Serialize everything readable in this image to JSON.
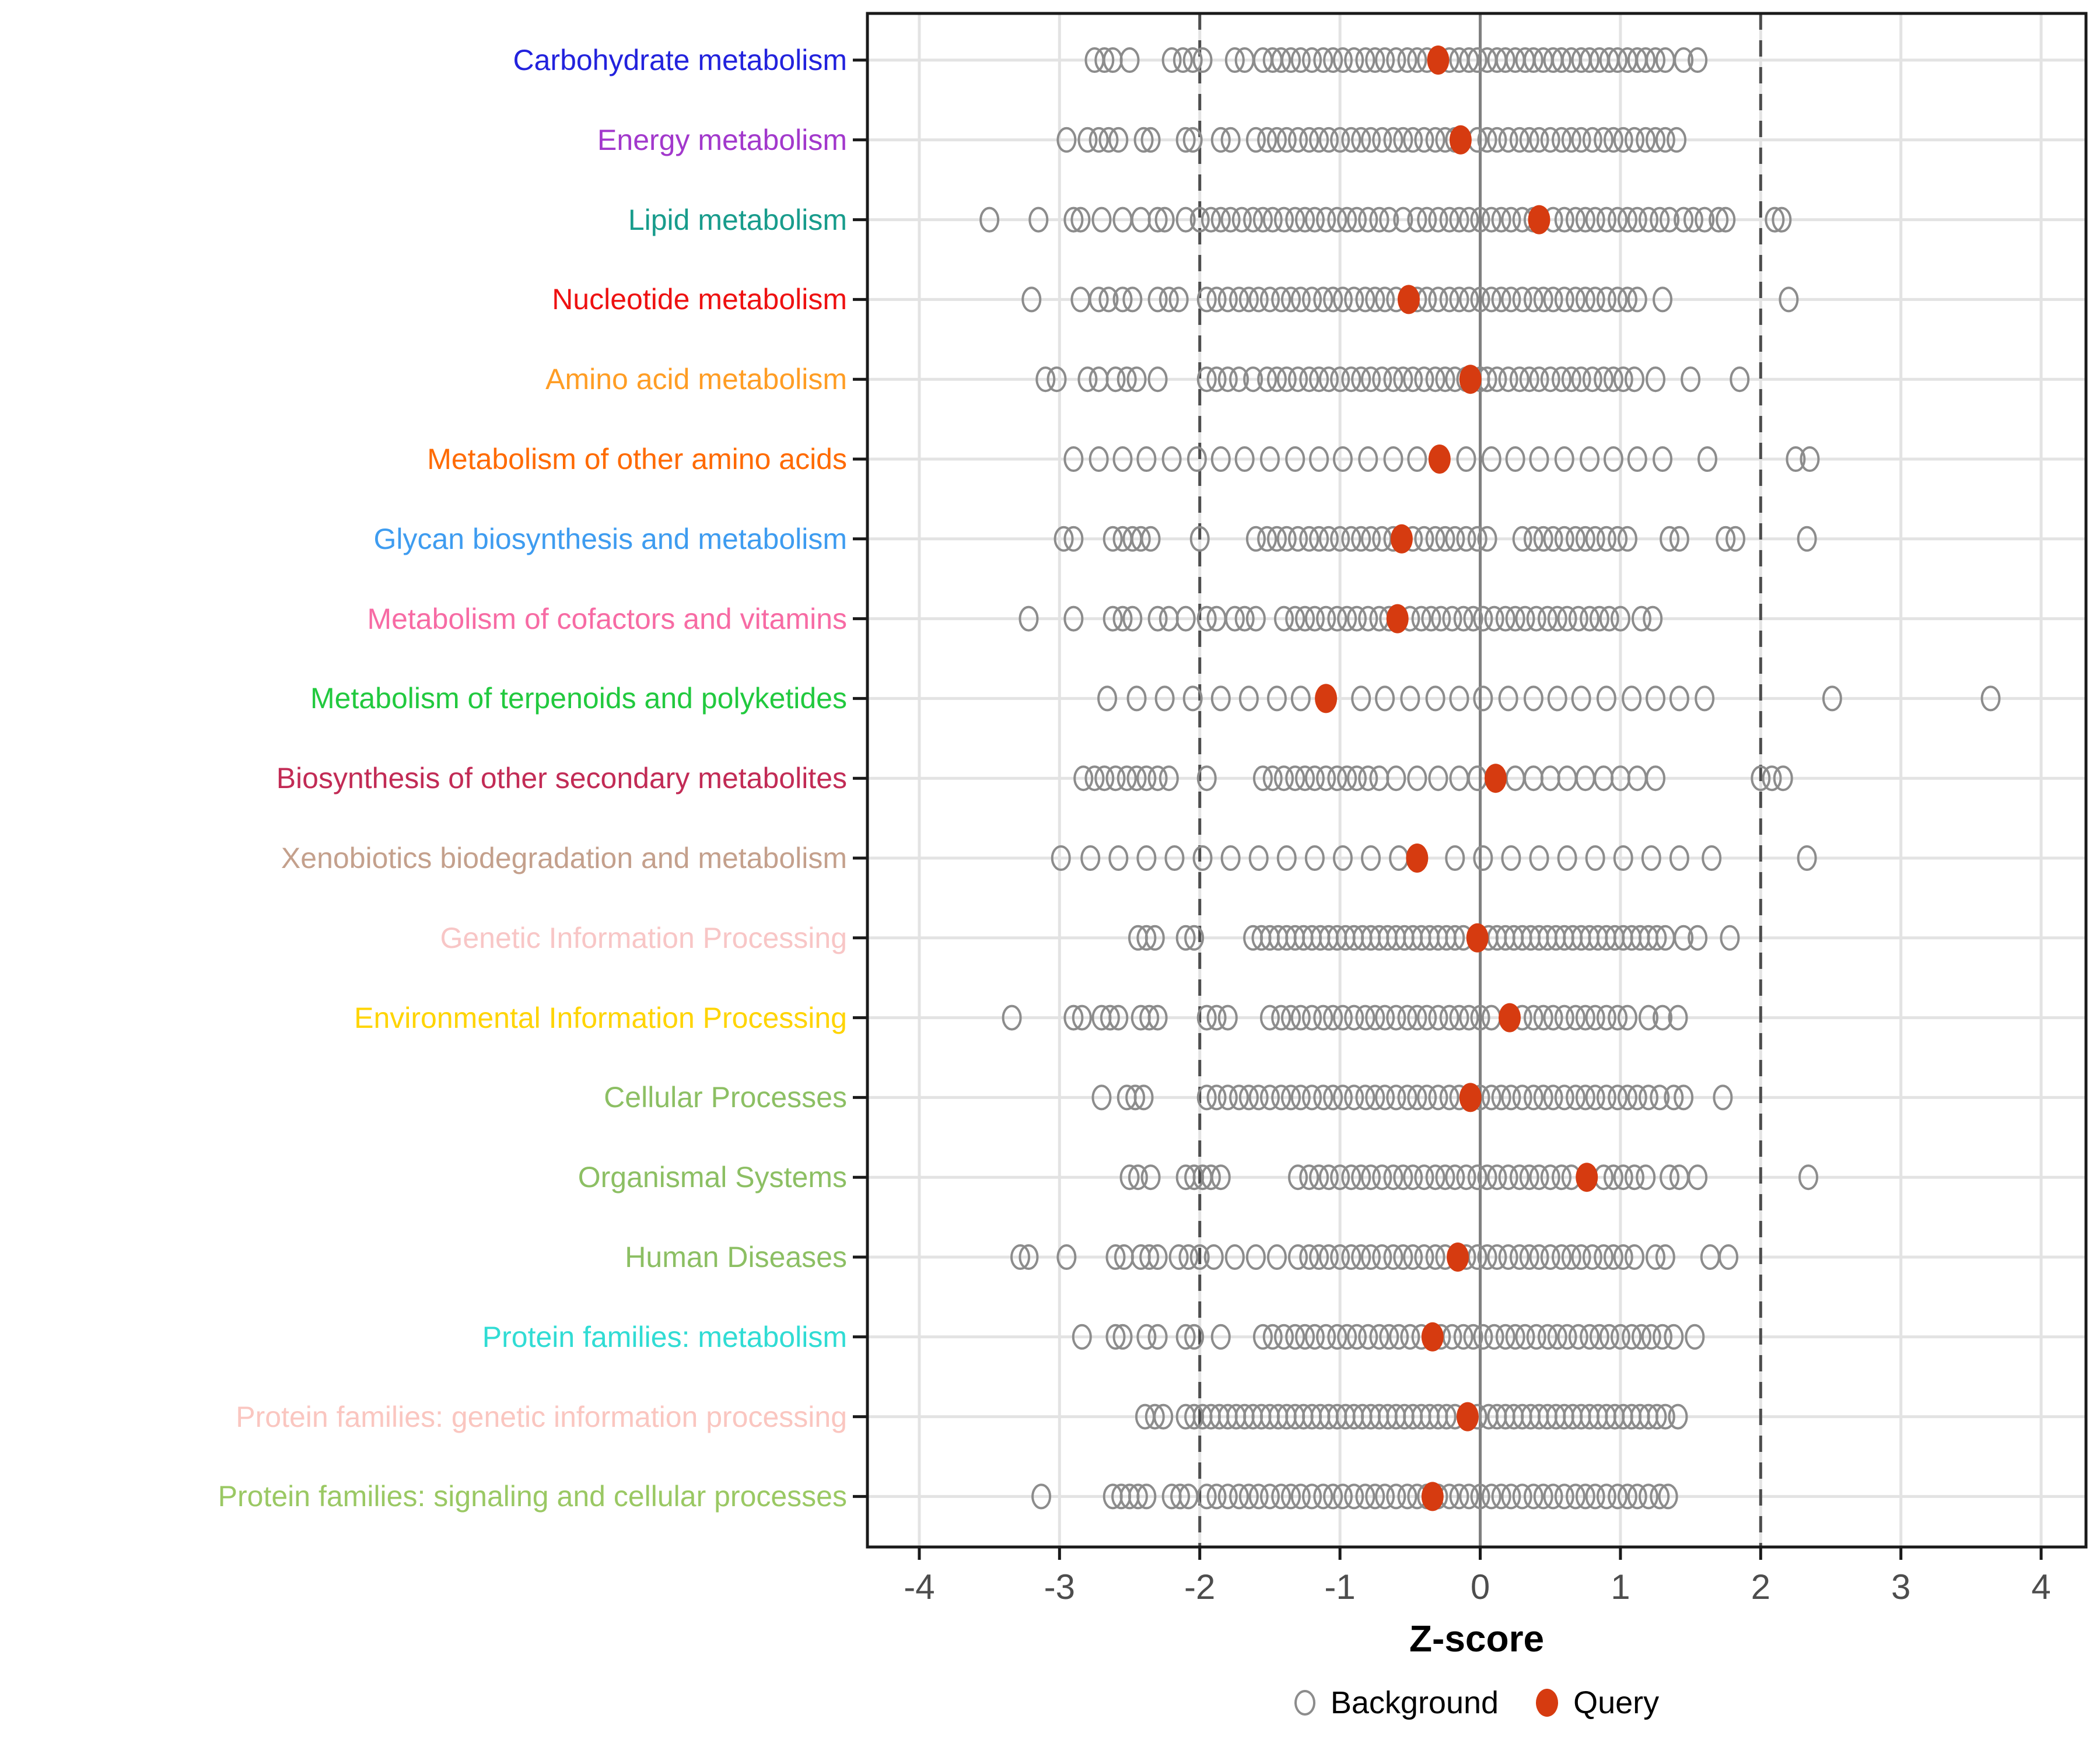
{
  "chart_data": {
    "type": "scatter",
    "subtype": "strip-dot-plot",
    "title": "",
    "xlabel": "Z-score",
    "ylabel": "",
    "xlim": [
      -4.37,
      4.32
    ],
    "x_ticks": [
      -4,
      -3,
      -2,
      -1,
      0,
      1,
      2,
      3,
      4
    ],
    "zero_line": 0,
    "threshold_lines": [
      -2,
      2
    ],
    "grid": true,
    "legend_position": "bottom",
    "legend": [
      {
        "label": "Background",
        "marker": "open-circle",
        "color": "#8C8C8C"
      },
      {
        "label": "Query",
        "marker": "filled-circle",
        "color": "#D63B10"
      }
    ],
    "categories": [
      {
        "label": "Carbohydrate metabolism",
        "color": "#2222DD",
        "query": -0.3,
        "background": [
          -2.75,
          -2.68,
          -2.62,
          -2.5,
          -2.2,
          -2.12,
          -2.05,
          -1.98,
          -1.75,
          -1.68,
          -1.55,
          -1.48,
          -1.42,
          -1.35,
          -1.28,
          -1.2,
          -1.12,
          -1.05,
          -0.98,
          -0.9,
          -0.82,
          -0.75,
          -0.68,
          -0.6,
          -0.52,
          -0.45,
          -0.38,
          -0.22,
          -0.15,
          -0.08,
          -0.02,
          0.05,
          0.12,
          0.18,
          0.25,
          0.32,
          0.38,
          0.45,
          0.52,
          0.58,
          0.65,
          0.72,
          0.78,
          0.85,
          0.92,
          0.98,
          1.05,
          1.12,
          1.18,
          1.25,
          1.32,
          1.45,
          1.55
        ]
      },
      {
        "label": "Energy metabolism",
        "color": "#A238CC",
        "query": -0.14,
        "background": [
          -2.95,
          -2.8,
          -2.72,
          -2.65,
          -2.58,
          -2.4,
          -2.35,
          -2.1,
          -2.05,
          -1.85,
          -1.78,
          -1.6,
          -1.52,
          -1.45,
          -1.38,
          -1.3,
          -1.22,
          -1.15,
          -1.08,
          -1.0,
          -0.92,
          -0.85,
          -0.78,
          -0.7,
          -0.62,
          -0.55,
          -0.48,
          -0.4,
          -0.32,
          -0.25,
          -0.18,
          -0.02,
          0.05,
          0.12,
          0.2,
          0.28,
          0.35,
          0.42,
          0.5,
          0.58,
          0.65,
          0.72,
          0.8,
          0.88,
          0.95,
          1.02,
          1.1,
          1.18,
          1.25,
          1.32,
          1.4
        ]
      },
      {
        "label": "Lipid metabolism",
        "color": "#189C8C",
        "query": 0.42,
        "background": [
          -3.5,
          -3.15,
          -2.9,
          -2.85,
          -2.7,
          -2.55,
          -2.42,
          -2.3,
          -2.25,
          -2.1,
          -2.0,
          -1.92,
          -1.85,
          -1.78,
          -1.7,
          -1.62,
          -1.55,
          -1.48,
          -1.4,
          -1.32,
          -1.25,
          -1.18,
          -1.1,
          -1.02,
          -0.95,
          -0.88,
          -0.8,
          -0.72,
          -0.65,
          -0.55,
          -0.45,
          -0.38,
          -0.3,
          -0.22,
          -0.15,
          -0.08,
          0.0,
          0.08,
          0.15,
          0.22,
          0.3,
          0.38,
          0.52,
          0.6,
          0.68,
          0.75,
          0.82,
          0.9,
          0.98,
          1.05,
          1.12,
          1.2,
          1.28,
          1.35,
          1.45,
          1.52,
          1.6,
          1.7,
          1.75,
          2.1,
          2.15
        ]
      },
      {
        "label": "Nucleotide metabolism",
        "color": "#EE1111",
        "query": -0.51,
        "background": [
          -3.2,
          -2.85,
          -2.72,
          -2.65,
          -2.55,
          -2.48,
          -2.3,
          -2.22,
          -2.15,
          -1.95,
          -1.88,
          -1.8,
          -1.72,
          -1.65,
          -1.58,
          -1.5,
          -1.42,
          -1.35,
          -1.28,
          -1.2,
          -1.12,
          -1.05,
          -0.98,
          -0.9,
          -0.82,
          -0.75,
          -0.68,
          -0.6,
          -0.45,
          -0.38,
          -0.3,
          -0.22,
          -0.15,
          -0.08,
          0.0,
          0.08,
          0.15,
          0.22,
          0.3,
          0.38,
          0.45,
          0.52,
          0.6,
          0.68,
          0.75,
          0.82,
          0.9,
          0.98,
          1.05,
          1.12,
          1.3,
          2.2
        ]
      },
      {
        "label": "Amino acid metabolism",
        "color": "#FF9D24",
        "query": -0.07,
        "background": [
          -3.1,
          -3.02,
          -2.8,
          -2.72,
          -2.6,
          -2.52,
          -2.45,
          -2.3,
          -1.95,
          -1.88,
          -1.8,
          -1.72,
          -1.62,
          -1.52,
          -1.45,
          -1.38,
          -1.3,
          -1.22,
          -1.15,
          -1.08,
          -1.0,
          -0.92,
          -0.85,
          -0.78,
          -0.7,
          -0.62,
          -0.55,
          -0.48,
          -0.4,
          -0.32,
          -0.25,
          -0.18,
          -0.1,
          0.0,
          0.05,
          0.12,
          0.2,
          0.28,
          0.35,
          0.42,
          0.5,
          0.58,
          0.65,
          0.72,
          0.8,
          0.88,
          0.95,
          1.02,
          1.1,
          1.25,
          1.5,
          1.85
        ]
      },
      {
        "label": "Metabolism of other amino acids",
        "color": "#FF6A00",
        "query": -0.29,
        "background": [
          -2.9,
          -2.72,
          -2.55,
          -2.38,
          -2.2,
          -2.02,
          -1.85,
          -1.68,
          -1.5,
          -1.32,
          -1.15,
          -0.98,
          -0.8,
          -0.62,
          -0.45,
          -0.1,
          0.08,
          0.25,
          0.42,
          0.6,
          0.78,
          0.95,
          1.12,
          1.3,
          1.62,
          2.25,
          2.35
        ]
      },
      {
        "label": "Glycan biosynthesis and metabolism",
        "color": "#3E9CF0",
        "query": -0.56,
        "background": [
          -2.97,
          -2.9,
          -2.62,
          -2.55,
          -2.48,
          -2.42,
          -2.35,
          -2.0,
          -1.6,
          -1.52,
          -1.45,
          -1.38,
          -1.3,
          -1.22,
          -1.15,
          -1.08,
          -1.0,
          -0.92,
          -0.85,
          -0.78,
          -0.7,
          -0.62,
          -0.48,
          -0.4,
          -0.32,
          -0.25,
          -0.18,
          -0.1,
          -0.02,
          0.05,
          0.3,
          0.38,
          0.45,
          0.52,
          0.6,
          0.68,
          0.75,
          0.82,
          0.9,
          0.98,
          1.05,
          1.35,
          1.42,
          1.75,
          1.82,
          2.33
        ]
      },
      {
        "label": "Metabolism of cofactors and vitamins",
        "color": "#F76BA4",
        "query": -0.59,
        "background": [
          -3.22,
          -2.9,
          -2.62,
          -2.55,
          -2.48,
          -2.3,
          -2.22,
          -2.1,
          -1.95,
          -1.88,
          -1.75,
          -1.68,
          -1.6,
          -1.4,
          -1.32,
          -1.25,
          -1.18,
          -1.1,
          -1.02,
          -0.95,
          -0.88,
          -0.8,
          -0.72,
          -0.65,
          -0.5,
          -0.42,
          -0.35,
          -0.28,
          -0.2,
          -0.12,
          -0.05,
          0.02,
          0.1,
          0.18,
          0.25,
          0.32,
          0.4,
          0.48,
          0.55,
          0.62,
          0.7,
          0.78,
          0.85,
          0.92,
          1.0,
          1.15,
          1.23
        ]
      },
      {
        "label": "Metabolism of terpenoids and polyketides",
        "color": "#21C93E",
        "query": -1.1,
        "background": [
          -2.66,
          -2.45,
          -2.25,
          -2.05,
          -1.85,
          -1.65,
          -1.45,
          -1.28,
          -0.85,
          -0.68,
          -0.5,
          -0.32,
          -0.15,
          0.02,
          0.2,
          0.38,
          0.55,
          0.72,
          0.9,
          1.08,
          1.25,
          1.42,
          1.6,
          2.51,
          3.64
        ]
      },
      {
        "label": "Biosynthesis of other secondary metabolites",
        "color": "#C22B55",
        "query": 0.11,
        "background": [
          -2.83,
          -2.75,
          -2.68,
          -2.6,
          -2.52,
          -2.45,
          -2.38,
          -2.3,
          -2.22,
          -1.95,
          -1.55,
          -1.48,
          -1.4,
          -1.32,
          -1.25,
          -1.18,
          -1.1,
          -1.02,
          -0.95,
          -0.88,
          -0.8,
          -0.72,
          -0.6,
          -0.45,
          -0.3,
          -0.15,
          -0.02,
          0.25,
          0.38,
          0.5,
          0.62,
          0.75,
          0.88,
          1.0,
          1.12,
          1.25,
          2.0,
          2.08,
          2.16
        ]
      },
      {
        "label": "Xenobiotics biodegradation and metabolism",
        "color": "#C4A08C",
        "query": -0.45,
        "background": [
          -2.99,
          -2.78,
          -2.58,
          -2.38,
          -2.18,
          -1.98,
          -1.78,
          -1.58,
          -1.38,
          -1.18,
          -0.98,
          -0.78,
          -0.58,
          -0.18,
          0.02,
          0.22,
          0.42,
          0.62,
          0.82,
          1.02,
          1.22,
          1.42,
          1.65,
          2.33
        ]
      },
      {
        "label": "Genetic Information Processing",
        "color": "#F8C6C6",
        "query": -0.02,
        "background": [
          -2.44,
          -2.38,
          -2.32,
          -2.1,
          -2.04,
          -1.62,
          -1.56,
          -1.5,
          -1.44,
          -1.38,
          -1.32,
          -1.26,
          -1.2,
          -1.14,
          -1.08,
          -1.02,
          -0.96,
          -0.9,
          -0.84,
          -0.78,
          -0.72,
          -0.66,
          -0.6,
          -0.54,
          -0.48,
          -0.42,
          -0.36,
          -0.3,
          -0.24,
          -0.18,
          -0.12,
          0.06,
          0.12,
          0.18,
          0.24,
          0.3,
          0.36,
          0.42,
          0.48,
          0.54,
          0.6,
          0.66,
          0.72,
          0.78,
          0.84,
          0.9,
          0.96,
          1.02,
          1.08,
          1.14,
          1.2,
          1.26,
          1.32,
          1.45,
          1.55,
          1.78
        ]
      },
      {
        "label": "Environmental Information Processing",
        "color": "#FFD400",
        "query": 0.21,
        "background": [
          -3.34,
          -2.9,
          -2.84,
          -2.7,
          -2.64,
          -2.58,
          -2.42,
          -2.36,
          -2.3,
          -1.95,
          -1.88,
          -1.8,
          -1.5,
          -1.42,
          -1.35,
          -1.28,
          -1.2,
          -1.12,
          -1.05,
          -0.98,
          -0.9,
          -0.82,
          -0.75,
          -0.68,
          -0.6,
          -0.52,
          -0.45,
          -0.38,
          -0.3,
          -0.22,
          -0.15,
          -0.08,
          0.0,
          0.08,
          0.3,
          0.38,
          0.45,
          0.52,
          0.6,
          0.68,
          0.75,
          0.82,
          0.9,
          0.98,
          1.05,
          1.2,
          1.3,
          1.41
        ]
      },
      {
        "label": "Cellular Processes",
        "color": "#8CBF63",
        "query": -0.07,
        "background": [
          -2.7,
          -2.52,
          -2.46,
          -2.4,
          -1.95,
          -1.88,
          -1.8,
          -1.72,
          -1.65,
          -1.58,
          -1.5,
          -1.42,
          -1.35,
          -1.28,
          -1.2,
          -1.12,
          -1.05,
          -0.98,
          -0.9,
          -0.82,
          -0.75,
          -0.68,
          -0.6,
          -0.52,
          -0.45,
          -0.38,
          -0.3,
          -0.22,
          -0.15,
          0.0,
          0.08,
          0.15,
          0.22,
          0.3,
          0.38,
          0.45,
          0.52,
          0.6,
          0.68,
          0.75,
          0.82,
          0.9,
          0.98,
          1.05,
          1.12,
          1.2,
          1.28,
          1.38,
          1.45,
          1.73
        ]
      },
      {
        "label": "Organismal Systems",
        "color": "#8CBF63",
        "query": 0.76,
        "background": [
          -2.5,
          -2.44,
          -2.35,
          -2.1,
          -2.04,
          -1.98,
          -1.92,
          -1.85,
          -1.3,
          -1.22,
          -1.15,
          -1.08,
          -1.0,
          -0.92,
          -0.85,
          -0.78,
          -0.7,
          -0.62,
          -0.55,
          -0.48,
          -0.4,
          -0.32,
          -0.25,
          -0.18,
          -0.1,
          -0.02,
          0.05,
          0.12,
          0.2,
          0.28,
          0.35,
          0.42,
          0.5,
          0.58,
          0.65,
          0.88,
          0.95,
          1.02,
          1.1,
          1.18,
          1.35,
          1.42,
          1.55,
          2.34
        ]
      },
      {
        "label": "Human Diseases",
        "color": "#8CBF63",
        "query": -0.16,
        "background": [
          -3.28,
          -3.22,
          -2.95,
          -2.6,
          -2.54,
          -2.42,
          -2.36,
          -2.3,
          -2.15,
          -2.08,
          -2.0,
          -1.9,
          -1.75,
          -1.6,
          -1.45,
          -1.3,
          -1.22,
          -1.15,
          -1.08,
          -1.0,
          -0.92,
          -0.85,
          -0.78,
          -0.7,
          -0.62,
          -0.55,
          -0.48,
          -0.4,
          -0.32,
          -0.25,
          -0.1,
          -0.02,
          0.05,
          0.12,
          0.2,
          0.28,
          0.35,
          0.42,
          0.5,
          0.58,
          0.65,
          0.72,
          0.8,
          0.88,
          0.95,
          1.02,
          1.1,
          1.25,
          1.32,
          1.64,
          1.77
        ]
      },
      {
        "label": "Protein families: metabolism",
        "color": "#30DCD4",
        "query": -0.34,
        "background": [
          -2.84,
          -2.6,
          -2.55,
          -2.38,
          -2.3,
          -2.1,
          -2.04,
          -1.85,
          -1.55,
          -1.48,
          -1.4,
          -1.32,
          -1.25,
          -1.18,
          -1.1,
          -1.02,
          -0.95,
          -0.88,
          -0.8,
          -0.72,
          -0.65,
          -0.58,
          -0.5,
          -0.42,
          -0.28,
          -0.2,
          -0.12,
          -0.05,
          0.02,
          0.1,
          0.18,
          0.25,
          0.32,
          0.4,
          0.48,
          0.55,
          0.62,
          0.7,
          0.78,
          0.85,
          0.92,
          1.0,
          1.08,
          1.15,
          1.22,
          1.3,
          1.38,
          1.53
        ]
      },
      {
        "label": "Protein families: genetic information processing",
        "color": "#FAC6C0",
        "query": -0.09,
        "background": [
          -2.39,
          -2.32,
          -2.26,
          -2.1,
          -2.04,
          -1.98,
          -1.92,
          -1.86,
          -1.8,
          -1.74,
          -1.68,
          -1.62,
          -1.56,
          -1.5,
          -1.44,
          -1.38,
          -1.32,
          -1.26,
          -1.2,
          -1.14,
          -1.08,
          -1.02,
          -0.96,
          -0.9,
          -0.84,
          -0.78,
          -0.72,
          -0.66,
          -0.6,
          -0.54,
          -0.48,
          -0.42,
          -0.36,
          -0.3,
          -0.24,
          -0.18,
          -0.02,
          0.06,
          0.12,
          0.18,
          0.24,
          0.3,
          0.36,
          0.42,
          0.48,
          0.54,
          0.6,
          0.66,
          0.72,
          0.78,
          0.84,
          0.9,
          0.96,
          1.02,
          1.08,
          1.14,
          1.2,
          1.26,
          1.32,
          1.41
        ]
      },
      {
        "label": "Protein families: signaling and cellular processes",
        "color": "#9AC863",
        "query": -0.34,
        "background": [
          -3.13,
          -2.62,
          -2.56,
          -2.5,
          -2.44,
          -2.38,
          -2.2,
          -2.14,
          -2.08,
          -1.95,
          -1.88,
          -1.8,
          -1.72,
          -1.65,
          -1.58,
          -1.5,
          -1.42,
          -1.35,
          -1.28,
          -1.2,
          -1.12,
          -1.05,
          -0.98,
          -0.9,
          -0.82,
          -0.75,
          -0.68,
          -0.6,
          -0.52,
          -0.45,
          -0.38,
          -0.3,
          -0.22,
          -0.15,
          -0.08,
          0.0,
          0.08,
          0.15,
          0.22,
          0.3,
          0.38,
          0.45,
          0.52,
          0.6,
          0.68,
          0.75,
          0.82,
          0.9,
          0.98,
          1.05,
          1.12,
          1.2,
          1.28,
          1.34
        ]
      }
    ]
  },
  "style": {
    "query_color": "#D63B10",
    "background_stroke": "#8C8C8C",
    "grid_color": "#E3E3E3",
    "zero_line_color": "#7F7F7F",
    "threshold_line_color": "#4D4D4D",
    "panel_border_color": "#1A1A1A",
    "tick_label_color": "#4D4D4D"
  }
}
